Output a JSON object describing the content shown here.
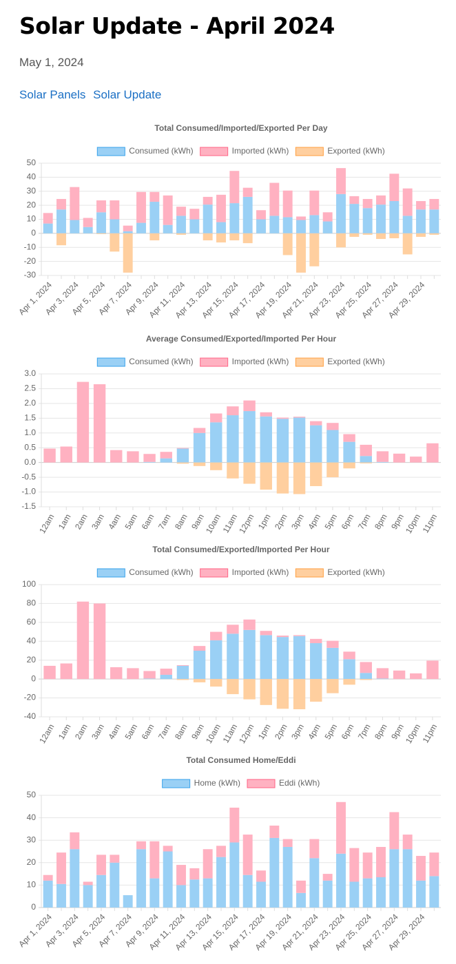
{
  "header": {
    "title": "Solar Update - April 2024",
    "date": "May 1, 2024",
    "links": [
      "Solar Panels",
      "Solar Update"
    ]
  },
  "chart_data": [
    {
      "type": "bar",
      "stacked": true,
      "title": "Total Consumed/Imported/Exported Per Day",
      "categories": [
        "Apr 1, 2024",
        null,
        "Apr 3, 2024",
        null,
        "Apr 5, 2024",
        null,
        "Apr 7, 2024",
        null,
        "Apr 9, 2024",
        null,
        "Apr 11, 2024",
        null,
        "Apr 13, 2024",
        null,
        "Apr 15, 2024",
        null,
        "Apr 17, 2024",
        null,
        "Apr 19, 2024",
        null,
        "Apr 21, 2024",
        null,
        "Apr 23, 2024",
        null,
        "Apr 25, 2024",
        null,
        "Apr 27, 2024",
        null,
        "Apr 29, 2024",
        null
      ],
      "series": [
        {
          "name": "Consumed (kWh)",
          "color": "#9ad0f5",
          "border": "#36a2eb",
          "values": [
            7,
            17,
            9.5,
            4.5,
            15,
            10,
            1.5,
            7.5,
            22.5,
            6,
            12.5,
            10,
            20.5,
            8,
            21.5,
            26,
            10,
            12.5,
            11.5,
            9.5,
            13,
            8.5,
            28,
            21,
            18,
            20.5,
            23,
            12.5,
            17,
            17
          ]
        },
        {
          "name": "Imported (kWh)",
          "color": "#ffb1c1",
          "border": "#ff6384",
          "values": [
            7.5,
            7.5,
            23.5,
            6.5,
            8.5,
            13.5,
            4,
            22,
            7,
            21,
            6.5,
            7.5,
            5.5,
            19.5,
            23,
            6.5,
            6.5,
            23.5,
            19,
            2.5,
            17.5,
            6.5,
            18.5,
            5.5,
            6.5,
            6.5,
            19.5,
            19.5,
            6,
            7.5
          ]
        },
        {
          "name": "Exported (kWh)",
          "color": "#ffcf9f",
          "border": "#ff9f40",
          "values": [
            0,
            -8.5,
            0,
            0,
            -0.5,
            -13,
            -28,
            0,
            -5,
            0,
            -1,
            0,
            -5,
            -6.5,
            -5,
            -7,
            0,
            0,
            -15.5,
            -28,
            -23.5,
            0,
            -10,
            -2.5,
            -1,
            -4,
            -3.5,
            -15,
            -2.5,
            -1
          ]
        }
      ],
      "ylim": [
        -30,
        50
      ],
      "yticks": [
        50,
        40,
        30,
        20,
        10,
        0,
        -10,
        -20,
        -30
      ],
      "grid": true
    },
    {
      "type": "bar",
      "stacked": true,
      "title": "Average Consumed/Exported/Imported Per Hour",
      "categories": [
        "12am",
        "1am",
        "2am",
        "3am",
        "4am",
        "5am",
        "6am",
        "7am",
        "8am",
        "9am",
        "10am",
        "11am",
        "12pm",
        "1pm",
        "2pm",
        "3pm",
        "4pm",
        "5pm",
        "6pm",
        "7pm",
        "8pm",
        "9pm",
        "10pm",
        "11pm"
      ],
      "series": [
        {
          "name": "Consumed (kWh)",
          "color": "#9ad0f5",
          "border": "#36a2eb",
          "values": [
            0,
            0,
            0,
            0,
            0,
            0,
            0.02,
            0.14,
            0.47,
            1.0,
            1.36,
            1.6,
            1.74,
            1.56,
            1.48,
            1.52,
            1.26,
            1.1,
            0.7,
            0.22,
            0.02,
            0,
            0,
            0
          ]
        },
        {
          "name": "Imported (kWh)",
          "color": "#ffb1c1",
          "border": "#ff6384",
          "values": [
            0.47,
            0.54,
            2.73,
            2.65,
            0.42,
            0.38,
            0.27,
            0.22,
            0.02,
            0.17,
            0.3,
            0.3,
            0.36,
            0.14,
            0.04,
            0.03,
            0.14,
            0.24,
            0.26,
            0.38,
            0.36,
            0.3,
            0.2,
            0.65
          ]
        },
        {
          "name": "Exported (kWh)",
          "color": "#ffcf9f",
          "border": "#ff9f40",
          "values": [
            0,
            0,
            0,
            0,
            0,
            0,
            0,
            0,
            -0.04,
            -0.12,
            -0.26,
            -0.54,
            -0.72,
            -0.92,
            -1.05,
            -1.07,
            -0.8,
            -0.5,
            -0.2,
            -0.03,
            0,
            0,
            0,
            0
          ]
        }
      ],
      "ylim": [
        -1.5,
        3
      ],
      "yticks": [
        {
          "value": 3,
          "label": "3.0"
        },
        2.5,
        {
          "value": 2,
          "label": "2.0"
        },
        1.5,
        {
          "value": 1,
          "label": "1.0"
        },
        0.5,
        {
          "value": 0,
          "label": "0.0"
        },
        -0.5,
        {
          "value": -1,
          "label": "-1.0"
        },
        -1.5
      ],
      "grid": true
    },
    {
      "type": "bar",
      "stacked": true,
      "title": "Total Consumed/Exported/Imported Per Hour",
      "categories": [
        "12am",
        "1am",
        "2am",
        "3am",
        "4am",
        "5am",
        "6am",
        "7am",
        "8am",
        "9am",
        "10am",
        "11am",
        "12pm",
        "1pm",
        "2pm",
        "3pm",
        "4pm",
        "5pm",
        "6pm",
        "7pm",
        "8pm",
        "9pm",
        "10pm",
        "11pm"
      ],
      "series": [
        {
          "name": "Consumed (kWh)",
          "color": "#9ad0f5",
          "border": "#36a2eb",
          "values": [
            0,
            0,
            0,
            0,
            0,
            0,
            0.5,
            4.5,
            14,
            30,
            41,
            48,
            52,
            46.5,
            44.5,
            45.5,
            38,
            33,
            21,
            6.5,
            0.5,
            0,
            0,
            0
          ]
        },
        {
          "name": "Imported (kWh)",
          "color": "#ffb1c1",
          "border": "#ff6384",
          "values": [
            14,
            16.5,
            82,
            80,
            12.5,
            11.5,
            8,
            6.5,
            0.7,
            5,
            9,
            9.5,
            11,
            4.5,
            1.5,
            1,
            4.5,
            7.5,
            8,
            11.5,
            11,
            9,
            6,
            19.5
          ]
        },
        {
          "name": "Exported (kWh)",
          "color": "#ffcf9f",
          "border": "#ff9f40",
          "values": [
            0,
            0,
            0,
            0,
            0,
            0,
            0,
            0,
            -1,
            -3.5,
            -8,
            -16,
            -21.5,
            -27.5,
            -31.5,
            -32,
            -24,
            -15,
            -6,
            -1,
            0,
            0,
            0,
            0
          ]
        }
      ],
      "ylim": [
        -40,
        100
      ],
      "yticks": [
        100,
        80,
        60,
        40,
        20,
        0,
        -20,
        -40
      ],
      "grid": true
    },
    {
      "type": "bar",
      "stacked": true,
      "title": "Total Consumed Home/Eddi",
      "categories": [
        "Apr 1, 2024",
        null,
        "Apr 3, 2024",
        null,
        "Apr 5, 2024",
        null,
        "Apr 7, 2024",
        null,
        "Apr 9, 2024",
        null,
        "Apr 11, 2024",
        null,
        "Apr 13, 2024",
        null,
        "Apr 15, 2024",
        null,
        "Apr 17, 2024",
        null,
        "Apr 19, 2024",
        null,
        "Apr 21, 2024",
        null,
        "Apr 23, 2024",
        null,
        "Apr 25, 2024",
        null,
        "Apr 27, 2024",
        null,
        "Apr 29, 2024",
        null
      ],
      "series": [
        {
          "name": "Home (kWh)",
          "color": "#9ad0f5",
          "border": "#36a2eb",
          "values": [
            12,
            10.5,
            26,
            10,
            14.5,
            20,
            5.5,
            26,
            13,
            25,
            10,
            12.5,
            13,
            22.5,
            29,
            14.5,
            11.5,
            31,
            27,
            6.5,
            22,
            12,
            24,
            11.5,
            13,
            13.5,
            26,
            26,
            12,
            14
          ]
        },
        {
          "name": "Eddi (kWh)",
          "color": "#ffb1c1",
          "border": "#ff6384",
          "values": [
            2.5,
            14,
            7.5,
            1.5,
            9,
            3.5,
            0,
            3.5,
            16.5,
            2.5,
            9,
            5,
            13,
            5,
            15.5,
            18,
            5,
            5.5,
            3.5,
            5.5,
            8.5,
            3,
            23,
            15,
            11.5,
            13.5,
            16.5,
            6.5,
            11,
            10.5
          ]
        }
      ],
      "ylim": [
        0,
        50
      ],
      "yticks": [
        50,
        40,
        30,
        20,
        10,
        0
      ],
      "grid": true
    }
  ]
}
